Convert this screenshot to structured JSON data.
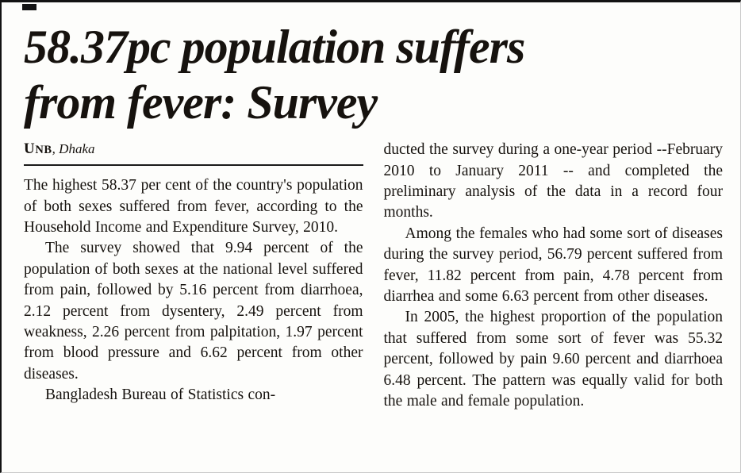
{
  "colors": {
    "paper": "#fdfdfb",
    "ink": "#16120e",
    "rule": "#1a1a1a",
    "edge_dark": "#131313",
    "edge_light": "#c9c9c9"
  },
  "article": {
    "headline_lines": [
      "58.37pc population suffers",
      "from fever: Survey"
    ],
    "byline": {
      "agency": "UNB",
      "location": ", Dhaka"
    },
    "left_column": [
      "The highest 58.37 per cent of the country's population of both sexes suffered from fever, according to the Household Income and Expenditure Survey, 2010.",
      "The survey showed that 9.94 percent of the population of both sexes at the national level suffered from pain, followed by 5.16 percent from diarrhoea, 2.12 percent from dysentery, 2.49 percent from weakness, 2.26 percent from palpitation, 1.97 percent from blood pressure and 6.62 percent from other diseases.",
      "Bangladesh Bureau of Statistics con-"
    ],
    "right_column": [
      "ducted the survey during a one-year period --February 2010 to January 2011 -- and completed the preliminary analysis of the data in a record four months.",
      "Among the females who had some sort of diseases during the survey period, 56.79 percent suffered from fever, 11.82 percent from pain, 4.78 percent from diarrhea and some 6.63 percent from other diseases.",
      "In 2005, the highest proportion of the population that suffered from some sort of fever was 55.32 percent, followed by pain 9.60 percent and diarrhoea 6.48 percent. The pattern was equally valid for both the male and female population."
    ]
  }
}
